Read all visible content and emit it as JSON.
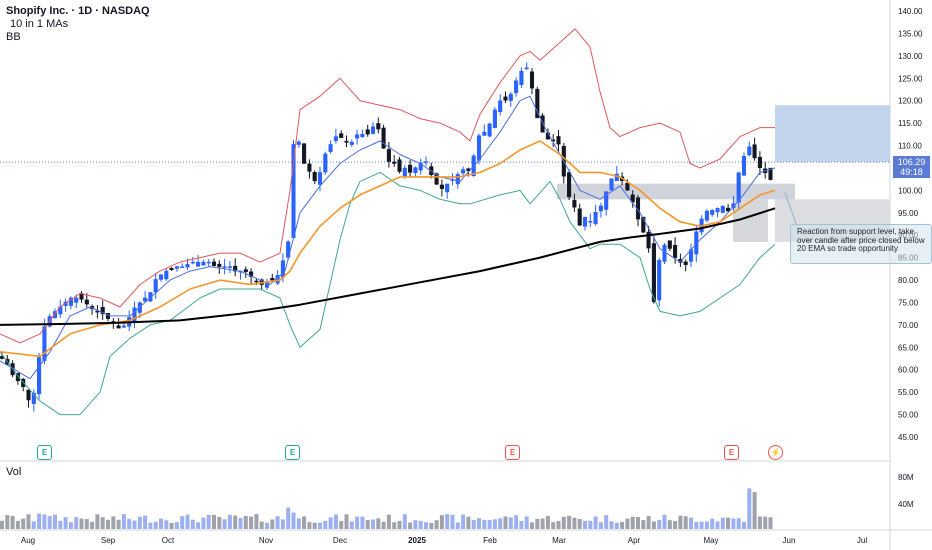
{
  "legend": {
    "title": "Shopify Inc. · 1D · NASDAQ",
    "ma": "10 in 1 MAs",
    "bb": "BB"
  },
  "volume_label": "Vol",
  "price_tag": {
    "price": "106.29",
    "countdown": "49:18"
  },
  "note": "Reaction from support level, take over candle after price closed below 20 EMA so trade opportunity",
  "earnings_badges": [
    {
      "label": "E",
      "color": "#26a69a"
    },
    {
      "label": "E",
      "color": "#26a69a"
    },
    {
      "label": "E",
      "color": "#ef5350"
    },
    {
      "label": "E",
      "color": "#ef5350"
    },
    {
      "label": "⚡",
      "color": "#ef5350"
    }
  ],
  "colors": {
    "up": "#2962ff",
    "down": "#131722",
    "bb_upper": "#e0585d",
    "bb_lower": "#3fa88e",
    "ema_fast": "#4b6fe0",
    "ema_slow": "#f5962b",
    "sma_long": "#000000",
    "zone": "#b7bcc6",
    "target": "#b8cdea"
  },
  "chart_data": {
    "type": "candlestick",
    "title": "Shopify Inc. · 1D · NASDAQ",
    "y_ticks": [
      "140.00",
      "135.00",
      "130.00",
      "125.00",
      "120.00",
      "115.00",
      "110.00",
      "105.00",
      "100.00",
      "95.00",
      "90.00",
      "85.00",
      "80.00",
      "75.00",
      "70.00",
      "65.00",
      "60.00",
      "55.00",
      "50.00",
      "45.00"
    ],
    "x_ticks": [
      "Aug",
      "Sep",
      "Oct",
      "Nov",
      "Dec",
      "2025",
      "Feb",
      "Mar",
      "Apr",
      "May",
      "Jun",
      "Jul"
    ],
    "volume_ticks": [
      "80M",
      "40M"
    ],
    "ylim": [
      42,
      142
    ],
    "last_price": 106.29,
    "close_path": [
      [
        0,
        63
      ],
      [
        4,
        62
      ],
      [
        8,
        61
      ],
      [
        12,
        59
      ],
      [
        16,
        58
      ],
      [
        20,
        57
      ],
      [
        24,
        56
      ],
      [
        28,
        54
      ],
      [
        30,
        51
      ],
      [
        32,
        53
      ],
      [
        34,
        55
      ],
      [
        36,
        56
      ],
      [
        38,
        60
      ],
      [
        40,
        65
      ],
      [
        42,
        68
      ],
      [
        45,
        70
      ],
      [
        50,
        72
      ],
      [
        55,
        73
      ],
      [
        60,
        74
      ],
      [
        65,
        75
      ],
      [
        70,
        76
      ],
      [
        75,
        76
      ],
      [
        80,
        76
      ],
      [
        85,
        75
      ],
      [
        90,
        74
      ],
      [
        95,
        73
      ],
      [
        100,
        73
      ],
      [
        105,
        72
      ],
      [
        110,
        71
      ],
      [
        115,
        70
      ],
      [
        120,
        69
      ],
      [
        125,
        70
      ],
      [
        130,
        72
      ],
      [
        135,
        74
      ],
      [
        140,
        75
      ],
      [
        145,
        76
      ],
      [
        150,
        77
      ],
      [
        155,
        80
      ],
      [
        160,
        81
      ],
      [
        165,
        82
      ],
      [
        170,
        82
      ],
      [
        175,
        83
      ],
      [
        180,
        83
      ],
      [
        185,
        83
      ],
      [
        190,
        84
      ],
      [
        195,
        84
      ],
      [
        200,
        84
      ],
      [
        205,
        84
      ],
      [
        210,
        84
      ],
      [
        215,
        83
      ],
      [
        220,
        83
      ],
      [
        225,
        83
      ],
      [
        230,
        83
      ],
      [
        235,
        82
      ],
      [
        240,
        82
      ],
      [
        245,
        82
      ],
      [
        250,
        81
      ],
      [
        255,
        80
      ],
      [
        260,
        79
      ],
      [
        265,
        79
      ],
      [
        270,
        80
      ],
      [
        275,
        80
      ],
      [
        280,
        82
      ],
      [
        285,
        86
      ],
      [
        290,
        90
      ],
      [
        292,
        105
      ],
      [
        294,
        112
      ],
      [
        296,
        107
      ],
      [
        298,
        114
      ],
      [
        300,
        106
      ],
      [
        305,
        106
      ],
      [
        310,
        104
      ],
      [
        315,
        102
      ],
      [
        320,
        104
      ],
      [
        325,
        108
      ],
      [
        330,
        110
      ],
      [
        335,
        112
      ],
      [
        340,
        112
      ],
      [
        345,
        111
      ],
      [
        350,
        110
      ],
      [
        355,
        112
      ],
      [
        360,
        113
      ],
      [
        365,
        112
      ],
      [
        370,
        113
      ],
      [
        375,
        115
      ],
      [
        380,
        113
      ],
      [
        385,
        108
      ],
      [
        390,
        106
      ],
      [
        395,
        106
      ],
      [
        400,
        104
      ],
      [
        405,
        105
      ],
      [
        410,
        104
      ],
      [
        415,
        105
      ],
      [
        420,
        106
      ],
      [
        425,
        107
      ],
      [
        430,
        104
      ],
      [
        435,
        102
      ],
      [
        440,
        100
      ],
      [
        445,
        101
      ],
      [
        450,
        102
      ],
      [
        455,
        103
      ],
      [
        460,
        104
      ],
      [
        465,
        105
      ],
      [
        470,
        104
      ],
      [
        475,
        109
      ],
      [
        480,
        113
      ],
      [
        485,
        113
      ],
      [
        490,
        115
      ],
      [
        495,
        118
      ],
      [
        500,
        120
      ],
      [
        505,
        120
      ],
      [
        510,
        121
      ],
      [
        515,
        124
      ],
      [
        520,
        126
      ],
      [
        525,
        128
      ],
      [
        530,
        126
      ],
      [
        535,
        118
      ],
      [
        540,
        114
      ],
      [
        545,
        112
      ],
      [
        550,
        111
      ],
      [
        555,
        111
      ],
      [
        560,
        110
      ],
      [
        565,
        101
      ],
      [
        570,
        98
      ],
      [
        575,
        96
      ],
      [
        580,
        92
      ],
      [
        585,
        94
      ],
      [
        590,
        93
      ],
      [
        595,
        95
      ],
      [
        600,
        96
      ],
      [
        605,
        99
      ],
      [
        610,
        102
      ],
      [
        615,
        104
      ],
      [
        620,
        103
      ],
      [
        625,
        101
      ],
      [
        630,
        99
      ],
      [
        635,
        96
      ],
      [
        640,
        92
      ],
      [
        645,
        90
      ],
      [
        650,
        86
      ],
      [
        652,
        78
      ],
      [
        654,
        75
      ],
      [
        656,
        73
      ],
      [
        658,
        82
      ],
      [
        660,
        86
      ],
      [
        665,
        88
      ],
      [
        670,
        87
      ],
      [
        675,
        85
      ],
      [
        680,
        84
      ],
      [
        685,
        83
      ],
      [
        690,
        86
      ],
      [
        695,
        90
      ],
      [
        700,
        93
      ],
      [
        705,
        95
      ],
      [
        710,
        96
      ],
      [
        715,
        95
      ],
      [
        720,
        97
      ],
      [
        725,
        96
      ],
      [
        730,
        95
      ],
      [
        735,
        98
      ],
      [
        740,
        106
      ],
      [
        745,
        108
      ],
      [
        750,
        110
      ],
      [
        755,
        107
      ],
      [
        760,
        105
      ],
      [
        765,
        104
      ],
      [
        770,
        102
      ],
      [
        775,
        106
      ]
    ],
    "bb_upper": [
      [
        0,
        68
      ],
      [
        20,
        66
      ],
      [
        40,
        68
      ],
      [
        60,
        74
      ],
      [
        80,
        77
      ],
      [
        100,
        76
      ],
      [
        120,
        74
      ],
      [
        140,
        79
      ],
      [
        160,
        82
      ],
      [
        180,
        84
      ],
      [
        200,
        85
      ],
      [
        220,
        86
      ],
      [
        240,
        86
      ],
      [
        260,
        84
      ],
      [
        280,
        86
      ],
      [
        290,
        100
      ],
      [
        300,
        118
      ],
      [
        320,
        121
      ],
      [
        340,
        125
      ],
      [
        360,
        120
      ],
      [
        380,
        119
      ],
      [
        400,
        118
      ],
      [
        420,
        116
      ],
      [
        440,
        115
      ],
      [
        460,
        113
      ],
      [
        470,
        111
      ],
      [
        480,
        117
      ],
      [
        500,
        124
      ],
      [
        520,
        130
      ],
      [
        530,
        131
      ],
      [
        540,
        129
      ],
      [
        560,
        133
      ],
      [
        575,
        136
      ],
      [
        590,
        132
      ],
      [
        600,
        122
      ],
      [
        610,
        114
      ],
      [
        620,
        112
      ],
      [
        640,
        114
      ],
      [
        660,
        115
      ],
      [
        680,
        113
      ],
      [
        690,
        106
      ],
      [
        700,
        105
      ],
      [
        720,
        107
      ],
      [
        740,
        112
      ],
      [
        760,
        114
      ],
      [
        775,
        114
      ]
    ],
    "bb_lower": [
      [
        0,
        64
      ],
      [
        20,
        58
      ],
      [
        40,
        53
      ],
      [
        60,
        50
      ],
      [
        80,
        50
      ],
      [
        100,
        55
      ],
      [
        110,
        63
      ],
      [
        130,
        67
      ],
      [
        150,
        70
      ],
      [
        170,
        71
      ],
      [
        200,
        76
      ],
      [
        220,
        78
      ],
      [
        240,
        78
      ],
      [
        260,
        78
      ],
      [
        280,
        76
      ],
      [
        290,
        70
      ],
      [
        300,
        65
      ],
      [
        320,
        69
      ],
      [
        340,
        89
      ],
      [
        350,
        97
      ],
      [
        360,
        102
      ],
      [
        380,
        104
      ],
      [
        400,
        101
      ],
      [
        420,
        100
      ],
      [
        440,
        98
      ],
      [
        460,
        97
      ],
      [
        470,
        97
      ],
      [
        500,
        99
      ],
      [
        520,
        100
      ],
      [
        530,
        97
      ],
      [
        550,
        102
      ],
      [
        560,
        98
      ],
      [
        570,
        93
      ],
      [
        580,
        90
      ],
      [
        590,
        87
      ],
      [
        600,
        88
      ],
      [
        620,
        88
      ],
      [
        640,
        85
      ],
      [
        650,
        78
      ],
      [
        660,
        73
      ],
      [
        680,
        72
      ],
      [
        700,
        73
      ],
      [
        720,
        76
      ],
      [
        740,
        79
      ],
      [
        760,
        85
      ],
      [
        775,
        88
      ]
    ],
    "ema_fast": [
      [
        0,
        62
      ],
      [
        30,
        58
      ],
      [
        50,
        64
      ],
      [
        70,
        72
      ],
      [
        90,
        74
      ],
      [
        110,
        72
      ],
      [
        130,
        72
      ],
      [
        150,
        76
      ],
      [
        170,
        80
      ],
      [
        190,
        82
      ],
      [
        210,
        83
      ],
      [
        240,
        82
      ],
      [
        270,
        79
      ],
      [
        285,
        82
      ],
      [
        300,
        95
      ],
      [
        320,
        101
      ],
      [
        340,
        106
      ],
      [
        360,
        109
      ],
      [
        380,
        111
      ],
      [
        400,
        108
      ],
      [
        420,
        106
      ],
      [
        440,
        103
      ],
      [
        460,
        102
      ],
      [
        480,
        107
      ],
      [
        500,
        113
      ],
      [
        520,
        120
      ],
      [
        530,
        121
      ],
      [
        545,
        114
      ],
      [
        560,
        108
      ],
      [
        580,
        100
      ],
      [
        600,
        98
      ],
      [
        620,
        101
      ],
      [
        640,
        95
      ],
      [
        660,
        87
      ],
      [
        680,
        84
      ],
      [
        700,
        89
      ],
      [
        720,
        93
      ],
      [
        740,
        98
      ],
      [
        760,
        104
      ],
      [
        775,
        105
      ]
    ],
    "ema_slow": [
      [
        0,
        64
      ],
      [
        40,
        63
      ],
      [
        70,
        68
      ],
      [
        100,
        70
      ],
      [
        130,
        71
      ],
      [
        160,
        74
      ],
      [
        190,
        78
      ],
      [
        220,
        80
      ],
      [
        250,
        79
      ],
      [
        280,
        80
      ],
      [
        290,
        82
      ],
      [
        300,
        86
      ],
      [
        320,
        92
      ],
      [
        340,
        96
      ],
      [
        360,
        99
      ],
      [
        380,
        101
      ],
      [
        400,
        103
      ],
      [
        420,
        103
      ],
      [
        440,
        103
      ],
      [
        460,
        103
      ],
      [
        480,
        104
      ],
      [
        500,
        106
      ],
      [
        520,
        109
      ],
      [
        540,
        111
      ],
      [
        560,
        108
      ],
      [
        580,
        104
      ],
      [
        600,
        104
      ],
      [
        620,
        103
      ],
      [
        640,
        100
      ],
      [
        660,
        96
      ],
      [
        680,
        93
      ],
      [
        700,
        92
      ],
      [
        720,
        93
      ],
      [
        740,
        96
      ],
      [
        760,
        99
      ],
      [
        775,
        100
      ]
    ],
    "sma_long": [
      [
        0,
        70
      ],
      [
        60,
        70.2
      ],
      [
        120,
        70.5
      ],
      [
        180,
        71
      ],
      [
        240,
        72.5
      ],
      [
        300,
        74.5
      ],
      [
        360,
        77
      ],
      [
        420,
        79.5
      ],
      [
        480,
        82
      ],
      [
        540,
        85
      ],
      [
        600,
        88.5
      ],
      [
        630,
        89.5
      ],
      [
        660,
        90.3
      ],
      [
        700,
        91.5
      ],
      [
        740,
        93.5
      ],
      [
        775,
        96
      ]
    ],
    "support_zone": {
      "top": 101.5,
      "bottom": 98
    },
    "target_zone": {
      "top": 119,
      "bottom": 106.3
    },
    "stop_zone": {
      "top": 98,
      "bottom": 88.5
    }
  }
}
